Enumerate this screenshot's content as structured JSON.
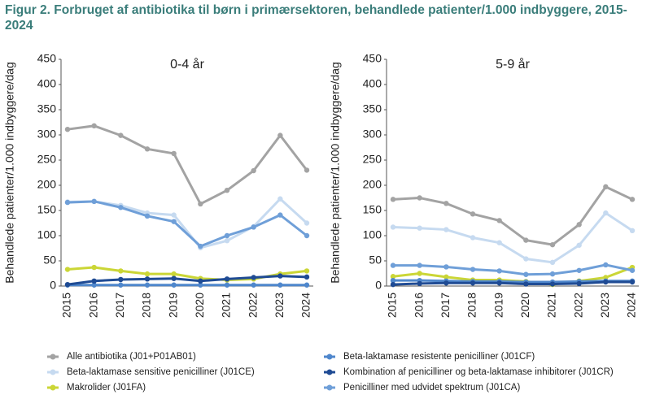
{
  "title": "Figur 2. Forbruget af antibiotika til børn i primærsektoren, behandlede patienter/1.000 indbyggere, 2015-2024",
  "chart_data": [
    {
      "type": "line",
      "title": "0-4 år",
      "y_label": "Behandlede patienter/1.000 indbyggere/dag",
      "categories": [
        "2015",
        "2016",
        "2017",
        "2018",
        "2019",
        "2020",
        "2021",
        "2022",
        "2023",
        "2024"
      ],
      "ylim": [
        0,
        450
      ],
      "yticks": [
        0,
        50,
        100,
        150,
        200,
        250,
        300,
        350,
        400,
        450
      ],
      "grid": false,
      "series": [
        {
          "name": "Alle antibiotika (J01+P01AB01)",
          "color": "#a3a3a3",
          "values": [
            311,
            318,
            299,
            272,
            263,
            163,
            190,
            229,
            299,
            230
          ]
        },
        {
          "name": "Beta-laktamase sensitive penicilliner (J01CE)",
          "color": "#c6daf0",
          "values": [
            167,
            168,
            160,
            145,
            141,
            76,
            90,
            118,
            173,
            125
          ]
        },
        {
          "name": "Makrolider (J01FA)",
          "color": "#cbd636",
          "values": [
            33,
            37,
            30,
            24,
            24,
            15,
            12,
            14,
            24,
            30
          ]
        },
        {
          "name": "Beta-laktamase resistente penicilliner (J01CF)",
          "color": "#4f87cc",
          "values": [
            2,
            2,
            2,
            2,
            2,
            2,
            2,
            2,
            2,
            2
          ]
        },
        {
          "name": "Kombination af penicilliner og beta-laktamase inhibitorer (J01CR)",
          "color": "#1f4b94",
          "values": [
            3,
            10,
            13,
            14,
            15,
            10,
            14,
            17,
            20,
            18
          ]
        },
        {
          "name": "Penicilliner med udvidet spektrum (J01CA)",
          "color": "#6f9fd8",
          "values": [
            166,
            168,
            156,
            139,
            128,
            79,
            100,
            117,
            141,
            100
          ]
        }
      ]
    },
    {
      "type": "line",
      "title": "5-9 år",
      "y_label": "Behandlede patienter/1.000 indbyggere/dag",
      "categories": [
        "2015",
        "2016",
        "2017",
        "2018",
        "2019",
        "2020",
        "2021",
        "2022",
        "2023",
        "2024"
      ],
      "ylim": [
        0,
        450
      ],
      "yticks": [
        0,
        50,
        100,
        150,
        200,
        250,
        300,
        350,
        400,
        450
      ],
      "grid": false,
      "series": [
        {
          "color": "#a3a3a3",
          "values": [
            172,
            175,
            164,
            143,
            130,
            91,
            82,
            122,
            197,
            172
          ]
        },
        {
          "color": "#c6daf0",
          "values": [
            117,
            115,
            112,
            96,
            86,
            54,
            47,
            81,
            145,
            110
          ]
        },
        {
          "color": "#cbd636",
          "values": [
            19,
            25,
            18,
            12,
            12,
            9,
            3,
            10,
            17,
            37
          ]
        },
        {
          "color": "#4f87cc",
          "values": [
            11,
            11,
            10,
            9,
            9,
            8,
            8,
            9,
            10,
            10
          ]
        },
        {
          "color": "#1f4b94",
          "values": [
            3,
            5,
            6,
            6,
            6,
            4,
            4,
            5,
            8,
            8
          ]
        },
        {
          "color": "#6f9fd8",
          "values": [
            41,
            41,
            38,
            33,
            30,
            23,
            24,
            31,
            42,
            31
          ]
        }
      ]
    }
  ]
}
